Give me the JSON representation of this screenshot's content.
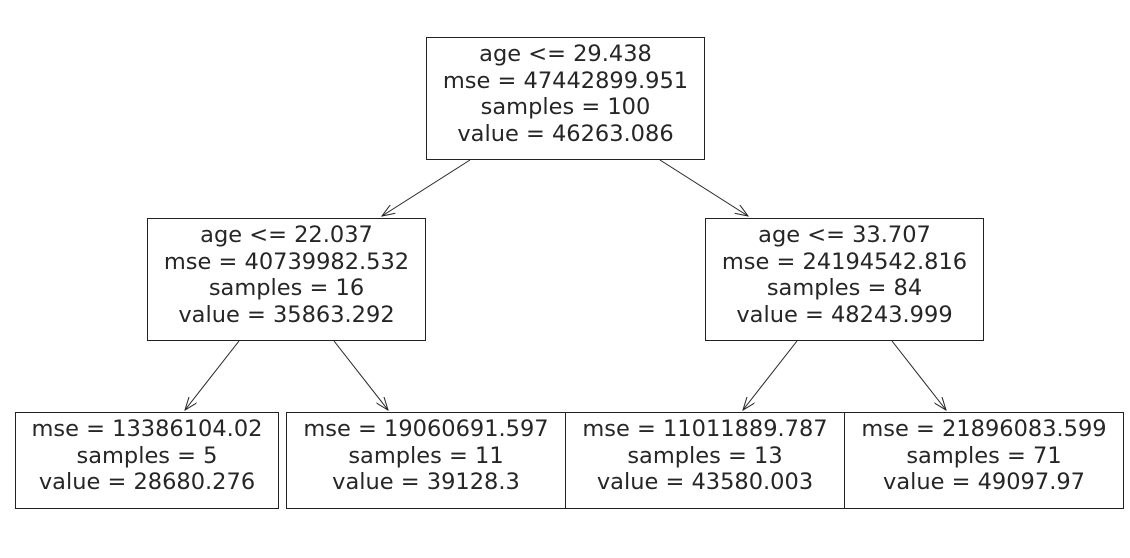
{
  "tree": {
    "nodes": [
      {
        "id": "n0",
        "lines": [
          "age <= 29.438",
          "mse = 47442899.951",
          "samples = 100",
          "value = 46263.086"
        ]
      },
      {
        "id": "n1",
        "lines": [
          "age <= 22.037",
          "mse = 40739982.532",
          "samples = 16",
          "value = 35863.292"
        ]
      },
      {
        "id": "n2",
        "lines": [
          "age <= 33.707",
          "mse = 24194542.816",
          "samples = 84",
          "value = 48243.999"
        ]
      },
      {
        "id": "n3",
        "lines": [
          "mse = 13386104.02",
          "samples = 5",
          "value = 28680.276"
        ]
      },
      {
        "id": "n4",
        "lines": [
          "mse = 19060691.597",
          "samples = 11",
          "value = 39128.3"
        ]
      },
      {
        "id": "n5",
        "lines": [
          "mse = 11011889.787",
          "samples = 13",
          "value = 43580.003"
        ]
      },
      {
        "id": "n6",
        "lines": [
          "mse = 21896083.599",
          "samples = 71",
          "value = 49097.97"
        ]
      }
    ],
    "edges": [
      {
        "from": "n0",
        "to": "n1"
      },
      {
        "from": "n0",
        "to": "n2"
      },
      {
        "from": "n1",
        "to": "n3"
      },
      {
        "from": "n1",
        "to": "n4"
      },
      {
        "from": "n2",
        "to": "n5"
      },
      {
        "from": "n2",
        "to": "n6"
      }
    ]
  }
}
